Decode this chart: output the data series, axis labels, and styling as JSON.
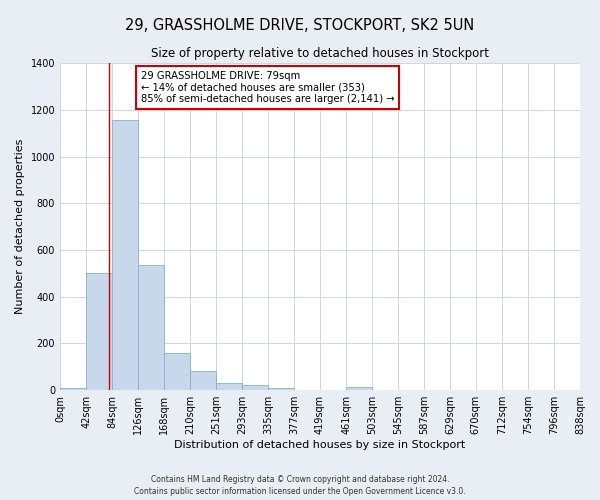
{
  "title": "29, GRASSHOLME DRIVE, STOCKPORT, SK2 5UN",
  "subtitle": "Size of property relative to detached houses in Stockport",
  "xlabel": "Distribution of detached houses by size in Stockport",
  "ylabel": "Number of detached properties",
  "footer_line1": "Contains HM Land Registry data © Crown copyright and database right 2024.",
  "footer_line2": "Contains public sector information licensed under the Open Government Licence v3.0.",
  "bin_edges": [
    0,
    42,
    84,
    126,
    168,
    210,
    251,
    293,
    335,
    377,
    419,
    461,
    503,
    545,
    587,
    629,
    670,
    712,
    754,
    796,
    838
  ],
  "bin_labels": [
    "0sqm",
    "42sqm",
    "84sqm",
    "126sqm",
    "168sqm",
    "210sqm",
    "251sqm",
    "293sqm",
    "335sqm",
    "377sqm",
    "419sqm",
    "461sqm",
    "503sqm",
    "545sqm",
    "587sqm",
    "629sqm",
    "670sqm",
    "712sqm",
    "754sqm",
    "796sqm",
    "838sqm"
  ],
  "bar_heights": [
    10,
    500,
    1155,
    535,
    160,
    82,
    32,
    22,
    10,
    0,
    0,
    12,
    0,
    0,
    0,
    0,
    0,
    0,
    0,
    0
  ],
  "bar_color": "#c8d8eb",
  "bar_edge_color": "#8ab0cc",
  "vline_x": 79,
  "vline_color": "#cc0000",
  "ylim": [
    0,
    1400
  ],
  "yticks": [
    0,
    200,
    400,
    600,
    800,
    1000,
    1200,
    1400
  ],
  "annotation_text_line1": "29 GRASSHOLME DRIVE: 79sqm",
  "annotation_text_line2": "← 14% of detached houses are smaller (353)",
  "annotation_text_line3": "85% of semi-detached houses are larger (2,141) →",
  "bg_color": "#e8eef4",
  "plot_bg_color": "#ffffff",
  "grid_color": "#c8d0d8",
  "title_fontsize": 10.5,
  "subtitle_fontsize": 8.5,
  "xlabel_fontsize": 8,
  "ylabel_fontsize": 8,
  "tick_fontsize": 7,
  "footer_fontsize": 5.5
}
